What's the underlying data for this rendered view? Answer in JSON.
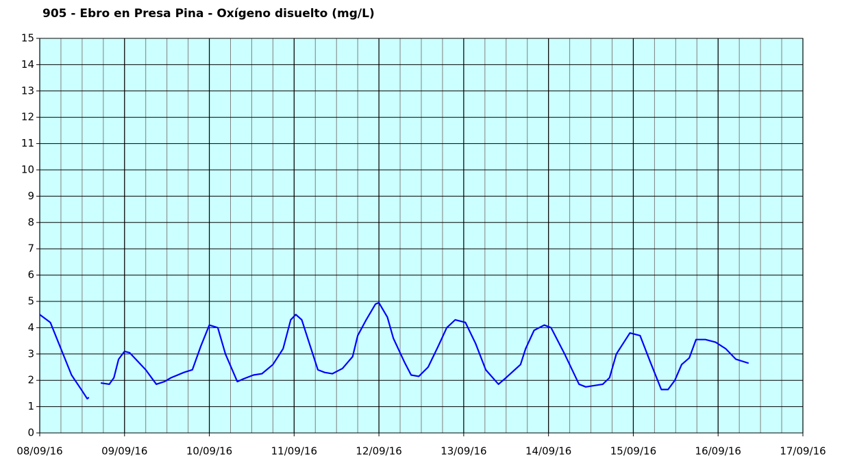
{
  "chart_data": {
    "type": "line",
    "title": "905 - Ebro en Presa Pina - Oxígeno disuelto (mg/L)",
    "x": [
      0,
      0.125,
      0.25,
      0.375,
      0.5,
      0.56,
      0.58,
      0.65,
      0.72,
      0.82,
      0.875,
      0.93,
      1.0,
      1.06,
      1.25,
      1.375,
      1.47,
      1.55,
      1.7,
      1.8,
      1.9,
      2.0,
      2.1,
      2.19,
      2.33,
      2.4,
      2.52,
      2.62,
      2.75,
      2.87,
      2.96,
      3.02,
      3.09,
      3.2,
      3.28,
      3.36,
      3.45,
      3.57,
      3.69,
      3.75,
      3.85,
      3.96,
      4.0,
      4.1,
      4.17,
      4.3,
      4.38,
      4.47,
      4.58,
      4.7,
      4.8,
      4.9,
      5.02,
      5.14,
      5.26,
      5.41,
      5.5,
      5.67,
      5.73,
      5.83,
      5.95,
      6.03,
      6.19,
      6.36,
      6.44,
      6.64,
      6.72,
      6.8,
      6.88,
      6.96,
      7.08,
      7.2,
      7.33,
      7.41,
      7.49,
      7.57,
      7.66,
      7.74,
      7.85,
      7.97,
      8.09,
      8.21,
      8.36
    ],
    "series": [
      {
        "name": "Oxígeno disuelto",
        "color": "#0000ff",
        "values": [
          4.5,
          4.2,
          3.2,
          2.2,
          1.6,
          1.3,
          1.35,
          null,
          1.9,
          1.85,
          2.1,
          2.8,
          3.1,
          3.05,
          2.4,
          1.85,
          1.95,
          2.1,
          2.3,
          2.4,
          3.3,
          4.1,
          4.0,
          3.0,
          1.95,
          2.05,
          2.2,
          2.25,
          2.6,
          3.2,
          4.3,
          4.5,
          4.3,
          3.2,
          2.4,
          2.3,
          2.25,
          2.45,
          2.9,
          3.7,
          4.3,
          4.9,
          4.95,
          4.4,
          3.6,
          2.7,
          2.2,
          2.15,
          2.5,
          3.3,
          4.0,
          4.3,
          4.2,
          3.4,
          2.4,
          1.85,
          2.1,
          2.6,
          3.2,
          3.9,
          4.1,
          4.0,
          3.0,
          1.85,
          1.75,
          1.85,
          2.1,
          3.0,
          3.4,
          3.8,
          3.7,
          2.7,
          1.65,
          1.65,
          2.0,
          2.6,
          2.85,
          3.55,
          3.55,
          3.45,
          3.2,
          2.8,
          2.65
        ]
      }
    ],
    "xlim": [
      0,
      9
    ],
    "xticks": [
      {
        "value": 0,
        "label": "08/09/16"
      },
      {
        "value": 1,
        "label": "09/09/16"
      },
      {
        "value": 2,
        "label": "10/09/16"
      },
      {
        "value": 3,
        "label": "11/09/16"
      },
      {
        "value": 4,
        "label": "12/09/16"
      },
      {
        "value": 5,
        "label": "13/09/16"
      },
      {
        "value": 6,
        "label": "14/09/16"
      },
      {
        "value": 7,
        "label": "15/09/16"
      },
      {
        "value": 8,
        "label": "16/09/16"
      },
      {
        "value": 9,
        "label": "17/09/16"
      }
    ],
    "minor_grid_step": 0.25,
    "ylim": [
      0,
      15
    ],
    "yticks": [
      0,
      1,
      2,
      3,
      4,
      5,
      6,
      7,
      8,
      9,
      10,
      11,
      12,
      13,
      14,
      15
    ],
    "grid": true,
    "background": "#ccffff"
  }
}
